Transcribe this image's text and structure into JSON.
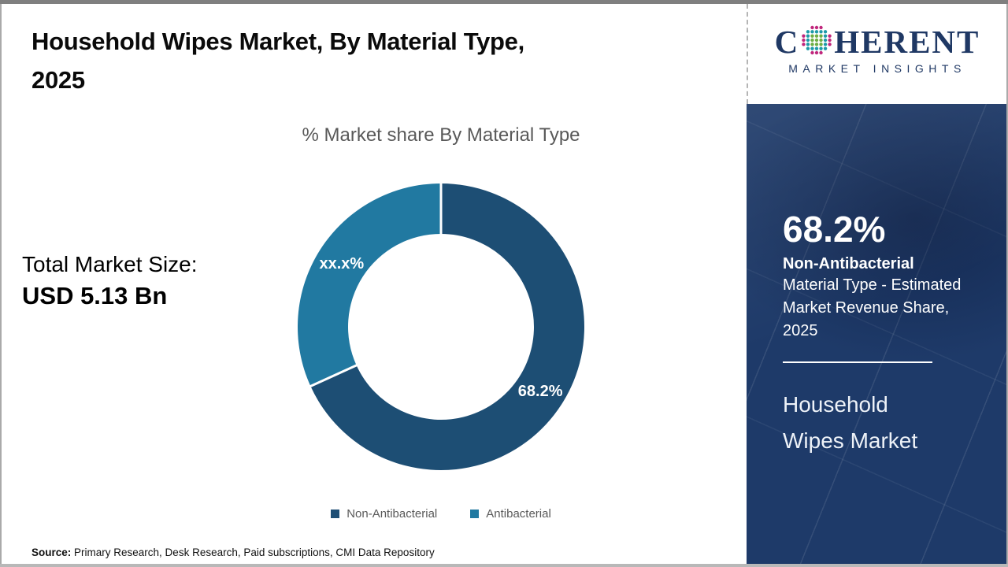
{
  "brand": {
    "wordmark_prefix": "C",
    "wordmark_suffix": "HERENT",
    "tagline": "MARKET INSIGHTS",
    "navy": "#1f3864",
    "dot_colors": {
      "outer": "#c0267c",
      "mid": "#1d9aa8",
      "inner": "#6fae44"
    }
  },
  "header": {
    "title_lines": [
      "Household Wipes Market, By Material Type,",
      "2025"
    ]
  },
  "chart_data": {
    "type": "donut",
    "title": "% Market share By Material Type",
    "categories": [
      "Non-Antibacterial",
      "Antibacterial"
    ],
    "values": [
      68.2,
      31.8
    ],
    "slice_labels": [
      "68.2%",
      "xx.x%"
    ],
    "colors": [
      "#1d4e74",
      "#2179a1"
    ],
    "start_angle_deg": -90,
    "direction": "clockwise",
    "hole_radius_ratio": 0.648,
    "legend_position": "bottom"
  },
  "market_size": {
    "label": "Total Market Size:",
    "value": "USD 5.13 Bn"
  },
  "sidebar": {
    "stat_value": "68.2%",
    "stat_label": "Non-Antibacterial",
    "stat_desc_lines": [
      "Material Type - Estimated",
      "Market Revenue Share,",
      "2025"
    ],
    "market_name_lines": [
      "Household",
      "Wipes Market"
    ]
  },
  "source": {
    "label": "Source:",
    "text": "Primary Research, Desk Research, Paid subscriptions, CMI Data Repository"
  }
}
